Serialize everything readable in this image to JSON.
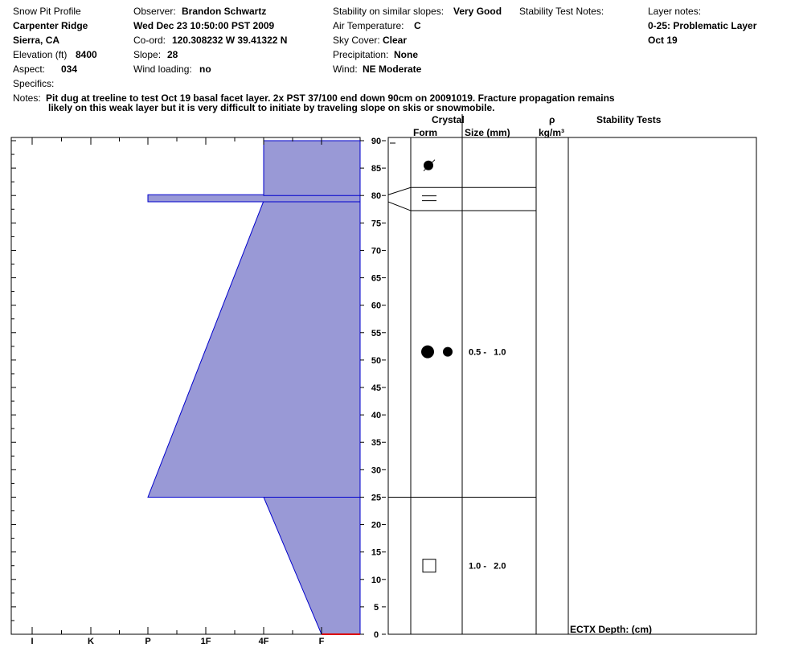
{
  "header": {
    "title": "Snow Pit Profile",
    "location_name": "Carpenter Ridge",
    "region": "Sierra, CA",
    "elevation_label": "Elevation (ft)",
    "elevation_value": "8400",
    "aspect_label": "Aspect:",
    "aspect_value": "034",
    "specifics_label": "Specifics:",
    "observer_label": "Observer:",
    "observer_value": "Brandon Schwartz",
    "datetime": "Wed Dec 23 10:50:00 PST 2009",
    "coord_label": "Co-ord:",
    "coord_value": "120.308232 W 39.41322 N",
    "slope_label": "Slope:",
    "slope_value": "28",
    "wind_loading_label": "Wind loading:",
    "wind_loading_value": "no",
    "stability_label": "Stability on similar slopes:",
    "stability_value": "Very Good",
    "air_temp_label": "Air Temperature:",
    "air_temp_value": "C",
    "sky_label": "Sky Cover:",
    "sky_value": "Clear",
    "precip_label": "Precipitation:",
    "precip_value": "None",
    "wind_label": "Wind:",
    "wind_value": "NE Moderate",
    "stability_notes_label": "Stability Test Notes:",
    "layer_notes_label": "Layer notes:",
    "layer_note_1": "0-25: Problematic Layer",
    "layer_note_2": "Oct 19",
    "notes_label": "Notes:",
    "notes_line1": "Pit dug at treeline to test Oct 19 basal facet layer. 2x PST 37/100 end down 90cm on 20091019. Fracture propagation remains",
    "notes_line2": "likely on this weak layer but it is very difficult to initiate by traveling slope on skis or snowmobile."
  },
  "columns": {
    "crystal": "Crystal",
    "form": "Form",
    "size": "Size (mm)",
    "rho": "ρ",
    "density_unit": "kg/m³",
    "stability_tests": "Stability Tests",
    "footer": "ECTX   Depth: (cm)"
  },
  "colors": {
    "profile_fill": "#9999d6",
    "profile_stroke": "#0000cc",
    "ground": "#dd0000"
  },
  "chart_data": {
    "type": "area",
    "title": "",
    "xlabel": "",
    "ylabel": "",
    "hardness_scale": [
      "I",
      "K",
      "P",
      "1F",
      "4F",
      "F"
    ],
    "ylim": [
      0,
      90
    ],
    "y_ticks": [
      0,
      5,
      10,
      15,
      20,
      25,
      30,
      35,
      40,
      45,
      50,
      55,
      60,
      65,
      70,
      75,
      80,
      85,
      90
    ],
    "layers": [
      {
        "bottom": 0,
        "top": 25,
        "hardness_top": "4F",
        "hardness_bottom": "F",
        "crystal_form": "faceted-square",
        "size_mm": "1.0 -   2.0"
      },
      {
        "bottom": 25,
        "top": 79,
        "hardness_top": "4F",
        "hardness_bottom": "P",
        "crystal_form": "rounded-grains",
        "size_mm": "0.5 -   1.0"
      },
      {
        "bottom": 79,
        "top": 80,
        "hardness_top": "P",
        "hardness_bottom": "P",
        "crystal_form": "ice-crust",
        "size_mm": ""
      },
      {
        "bottom": 80,
        "top": 90,
        "hardness_top": "4F",
        "hardness_bottom": "4F",
        "crystal_form": "decomposing-fragments",
        "size_mm": ""
      }
    ]
  }
}
